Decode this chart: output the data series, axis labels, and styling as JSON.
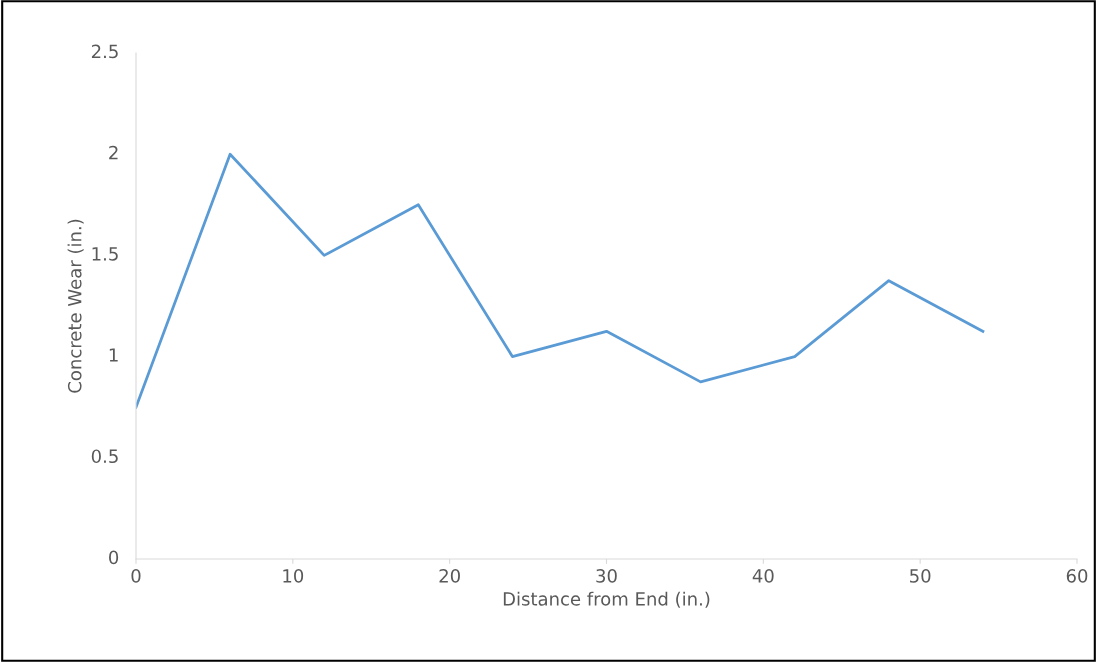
{
  "chart_data": {
    "type": "line",
    "xlabel": "Distance from End (in.)",
    "ylabel": "Concrete Wear (in.)",
    "x": [
      0,
      6,
      12,
      18,
      24,
      30,
      36,
      42,
      48,
      54
    ],
    "series": [
      {
        "color": "#5b9bd5",
        "values": [
          0.75,
          2.0,
          1.5,
          1.75,
          1.0,
          1.125,
          0.875,
          1.0,
          1.375,
          1.125
        ]
      }
    ],
    "xlim": [
      0,
      60
    ],
    "xticks": [
      0,
      10,
      20,
      30,
      40,
      50,
      60
    ],
    "ylim": [
      0,
      2.5
    ],
    "yticks": [
      0,
      0.5,
      1,
      1.5,
      2,
      2.5
    ],
    "grid": false,
    "legend": false,
    "marker": "none",
    "line_style": "solid"
  }
}
